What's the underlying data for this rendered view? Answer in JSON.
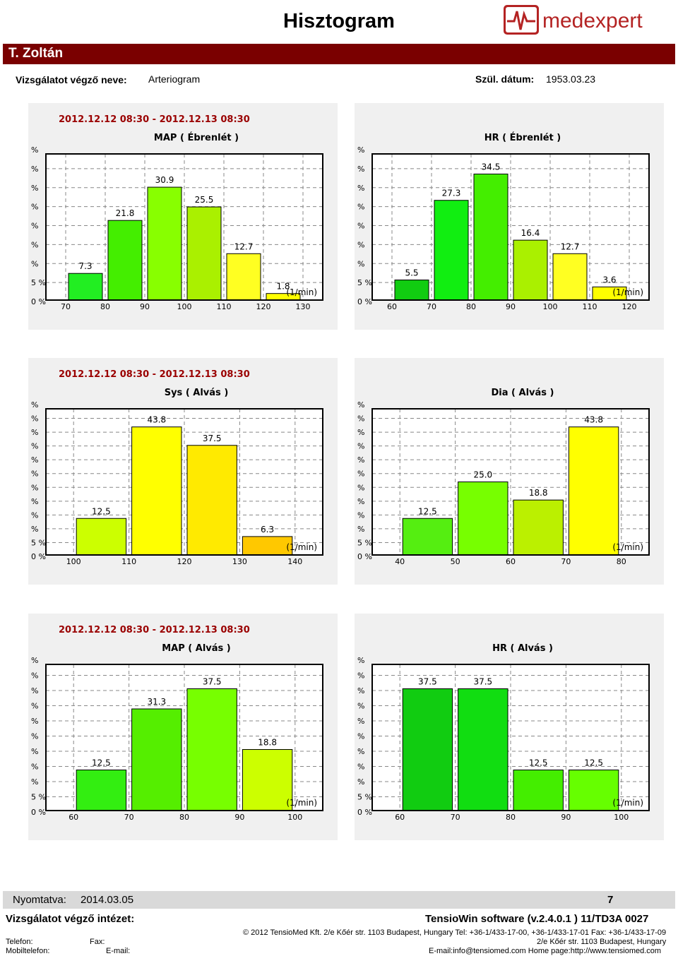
{
  "header": {
    "title": "Hisztogram",
    "logo_text": "medexpert",
    "patient_name": "T. Zoltán",
    "examiner_label": "Vizsgálatot végző neve:",
    "examiner_value": "Arteriogram",
    "dob_label": "Szül. dátum:",
    "dob_value": "1953.03.23"
  },
  "colors": {
    "brand": "#7a0000",
    "logo": "#b42323"
  },
  "chart_data": [
    {
      "type": "bar",
      "date_range": "2012.12.12 08:30 - 2012.12.13 08:30",
      "title": "MAP ( Ébrenlét )",
      "xlabel": "(1/min)",
      "x_ticks": [
        "70",
        "80",
        "90",
        "100",
        "110",
        "120",
        "130"
      ],
      "values": [
        7.3,
        21.8,
        30.9,
        25.5,
        12.7,
        1.8
      ],
      "labels": [
        "7.3",
        "21.8",
        "30.9",
        "25.5",
        "12.7",
        "1.8"
      ],
      "colors": [
        "#22ee22",
        "#44ee00",
        "#88ff00",
        "#aaf000",
        "#ffff22",
        "#ffff00"
      ],
      "y_axis_labels": [
        "%",
        "%",
        "%",
        "%",
        "%",
        "%",
        "%",
        "5 %",
        "0 %"
      ],
      "ylim": [
        0,
        40
      ]
    },
    {
      "type": "bar",
      "date_range": "",
      "title": "HR ( Ébrenlét )",
      "xlabel": "(1/min)",
      "x_ticks": [
        "60",
        "70",
        "80",
        "90",
        "100",
        "110",
        "120"
      ],
      "values": [
        5.5,
        27.3,
        34.5,
        16.4,
        12.7,
        3.6
      ],
      "labels": [
        "5.5",
        "27.3",
        "34.5",
        "16.4",
        "12.7",
        "3.6"
      ],
      "colors": [
        "#11cc11",
        "#11ee11",
        "#44ee00",
        "#aaf000",
        "#ffff22",
        "#ffff00"
      ],
      "y_axis_labels": [
        "%",
        "%",
        "%",
        "%",
        "%",
        "%",
        "%",
        "5 %",
        "0 %"
      ],
      "ylim": [
        0,
        40
      ]
    },
    {
      "type": "bar",
      "date_range": "2012.12.12 08:30 - 2012.12.13 08:30",
      "title": "Sys ( Alvás )",
      "xlabel": "(1/min)",
      "x_ticks": [
        "100",
        "110",
        "120",
        "130",
        "140"
      ],
      "values": [
        12.5,
        43.8,
        37.5,
        6.3
      ],
      "labels": [
        "12.5",
        "43.8",
        "37.5",
        "6.3"
      ],
      "colors": [
        "#ccff00",
        "#ffff00",
        "#ffea00",
        "#ffc800"
      ],
      "y_axis_labels": [
        "%",
        "%",
        "%",
        "%",
        "%",
        "%",
        "%",
        "%",
        "%",
        "%",
        "5 %",
        "0 %"
      ],
      "ylim": [
        0,
        50
      ]
    },
    {
      "type": "bar",
      "date_range": "",
      "title": "Dia ( Alvás )",
      "xlabel": "(1/min)",
      "x_ticks": [
        "40",
        "50",
        "60",
        "70",
        "80"
      ],
      "values": [
        12.5,
        25.0,
        18.8,
        43.8
      ],
      "labels": [
        "12.5",
        "25.0",
        "18.8",
        "43.8"
      ],
      "colors": [
        "#55ee11",
        "#77ff00",
        "#bbf000",
        "#ffff00"
      ],
      "y_axis_labels": [
        "%",
        "%",
        "%",
        "%",
        "%",
        "%",
        "%",
        "%",
        "%",
        "%",
        "5 %",
        "0 %"
      ],
      "ylim": [
        0,
        50
      ]
    },
    {
      "type": "bar",
      "date_range": "2012.12.12 08:30 - 2012.12.13 08:30",
      "title": "MAP ( Alvás )",
      "xlabel": "(1/min)",
      "x_ticks": [
        "60",
        "70",
        "80",
        "90",
        "100"
      ],
      "values": [
        12.5,
        31.3,
        37.5,
        18.8
      ],
      "labels": [
        "12.5",
        "31.3",
        "37.5",
        "18.8"
      ],
      "colors": [
        "#33ee11",
        "#55ee00",
        "#77ff00",
        "#ccff00"
      ],
      "y_axis_labels": [
        "%",
        "%",
        "%",
        "%",
        "%",
        "%",
        "%",
        "%",
        "%",
        "5 %",
        "0 %"
      ],
      "ylim": [
        0,
        45
      ]
    },
    {
      "type": "bar",
      "date_range": "",
      "title": "HR ( Alvás )",
      "xlabel": "(1/min)",
      "x_ticks": [
        "60",
        "70",
        "80",
        "90",
        "100"
      ],
      "values": [
        37.5,
        37.5,
        12.5,
        12.5
      ],
      "labels": [
        "37.5",
        "37.5",
        "12.5",
        "12.5"
      ],
      "colors": [
        "#11cc11",
        "#11dd11",
        "#44ee00",
        "#66ff00"
      ],
      "y_axis_labels": [
        "%",
        "%",
        "%",
        "%",
        "%",
        "%",
        "%",
        "%",
        "%",
        "5 %",
        "0 %"
      ],
      "ylim": [
        0,
        45
      ]
    }
  ],
  "footer": {
    "printed_label": "Nyomtatva:",
    "printed_date": "2014.03.05",
    "page_number": "7",
    "institute_label": "Vizsgálatot végző intézet:",
    "software": "TensioWin software (v.2.4.0.1 ) 11/TD3A 0027",
    "phone_label": "Telefon:",
    "fax_label": "Fax:",
    "mobile_label": "Mobiltelefon:",
    "email_label": "E-mail:",
    "copyright": "© 2012 TensioMed Kft. 2/e Kőér str. 1103 Budapest, Hungary Tel: +36-1/433-17-00, +36-1/433-17-01  Fax: +36-1/433-17-09",
    "address": "2/e Kőér str. 1103 Budapest, Hungary",
    "contact": "E-mail:info@tensiomed.com    Home page:http://www.tensiomed.com"
  }
}
